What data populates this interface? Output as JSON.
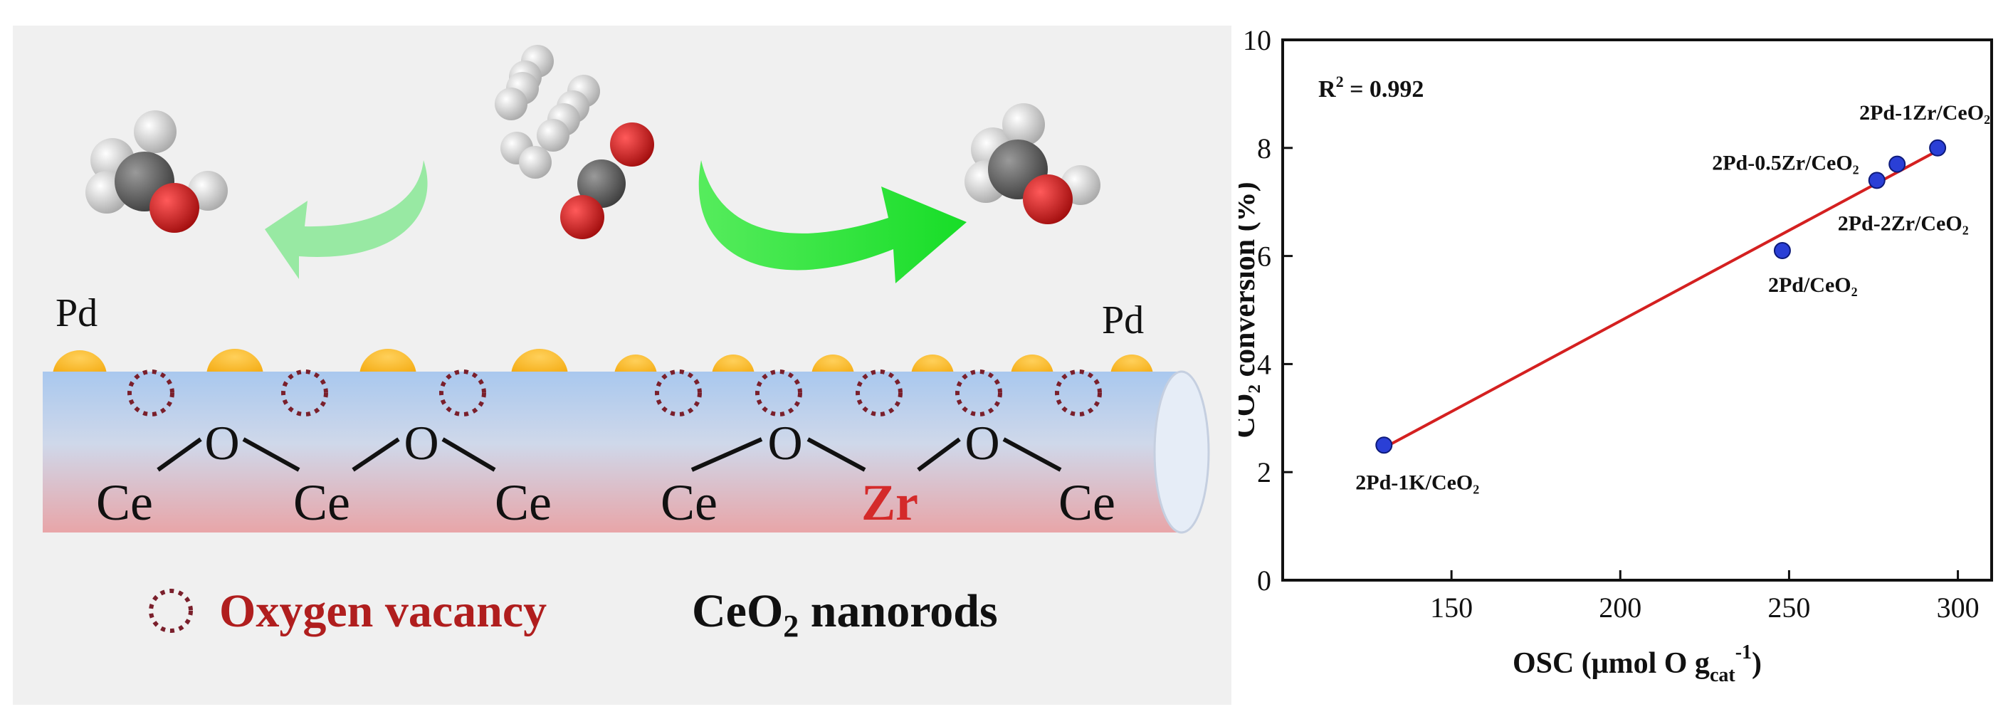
{
  "scheme": {
    "pd_label_left": "Pd",
    "pd_label_right": "Pd",
    "ce_labels": [
      "Ce",
      "Ce",
      "Ce",
      "Ce",
      "Ce"
    ],
    "o_labels": [
      "O",
      "O",
      "O",
      "O"
    ],
    "zr_label": "Zr",
    "legend_vacancy": "Oxygen vacancy",
    "legend_nanorods_prefix": "CeO",
    "legend_nanorods_sub": "2",
    "legend_nanorods_suffix": " nanorods",
    "colors": {
      "panel_bg": "#f0f0f0",
      "pd_particle": "#f7b418",
      "vacancy": "#7a1f2b",
      "zr": "#d42a2a",
      "vacancy_text": "#b01e1e",
      "arrow_left": "#8ee89a",
      "arrow_right": "#2fe63a"
    }
  },
  "chart_data": {
    "type": "scatter",
    "r2_label_main": "R",
    "r2_label_sup": "2",
    "r2_label_rest": " = 0.992",
    "xlabel_main": "OSC (μmol O g",
    "xlabel_sub": "cat",
    "xlabel_sup": "-1",
    "xlabel_close": ")",
    "ylabel": "CO₂ conversion (%)",
    "xlim": [
      100,
      310
    ],
    "ylim": [
      0,
      10
    ],
    "xticks": [
      150,
      200,
      250,
      300
    ],
    "yticks": [
      0,
      2,
      4,
      6,
      8,
      10
    ],
    "points": [
      {
        "label": "2Pd-1K/CeO₂",
        "x": 130,
        "y": 2.5
      },
      {
        "label": "2Pd/CeO₂",
        "x": 248,
        "y": 6.1
      },
      {
        "label": "2Pd-2Zr/CeO₂",
        "x": 276,
        "y": 7.4
      },
      {
        "label": "2Pd-0.5Zr/CeO₂",
        "x": 282,
        "y": 7.7
      },
      {
        "label": "2Pd-1Zr/CeO₂",
        "x": 294,
        "y": 8.0
      }
    ],
    "fit_line": {
      "x": [
        130,
        294
      ],
      "y": [
        2.45,
        7.95
      ]
    },
    "colors": {
      "point": "#2a3fd6",
      "fit": "#d42020"
    }
  }
}
